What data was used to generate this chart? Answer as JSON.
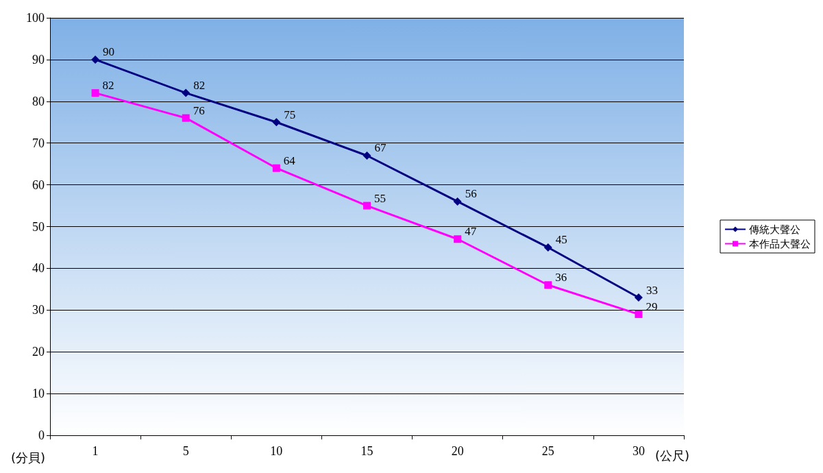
{
  "chart_data": {
    "type": "line",
    "categories": [
      "1",
      "5",
      "10",
      "15",
      "20",
      "25",
      "30"
    ],
    "series": [
      {
        "name": "傳統大聲公",
        "color": "#000080",
        "marker": "diamond",
        "values": [
          90,
          82,
          75,
          67,
          56,
          45,
          33
        ]
      },
      {
        "name": "本作品大聲公",
        "color": "#ff00ff",
        "marker": "square",
        "values": [
          82,
          76,
          64,
          55,
          47,
          36,
          29
        ]
      }
    ],
    "xlabel": "(公尺)",
    "ylabel": "(分貝)",
    "ylim": [
      0,
      100
    ],
    "yticks": [
      0,
      10,
      20,
      30,
      40,
      50,
      60,
      70,
      80,
      90,
      100
    ],
    "grid": "y",
    "legend": "right",
    "data_labels": true
  }
}
